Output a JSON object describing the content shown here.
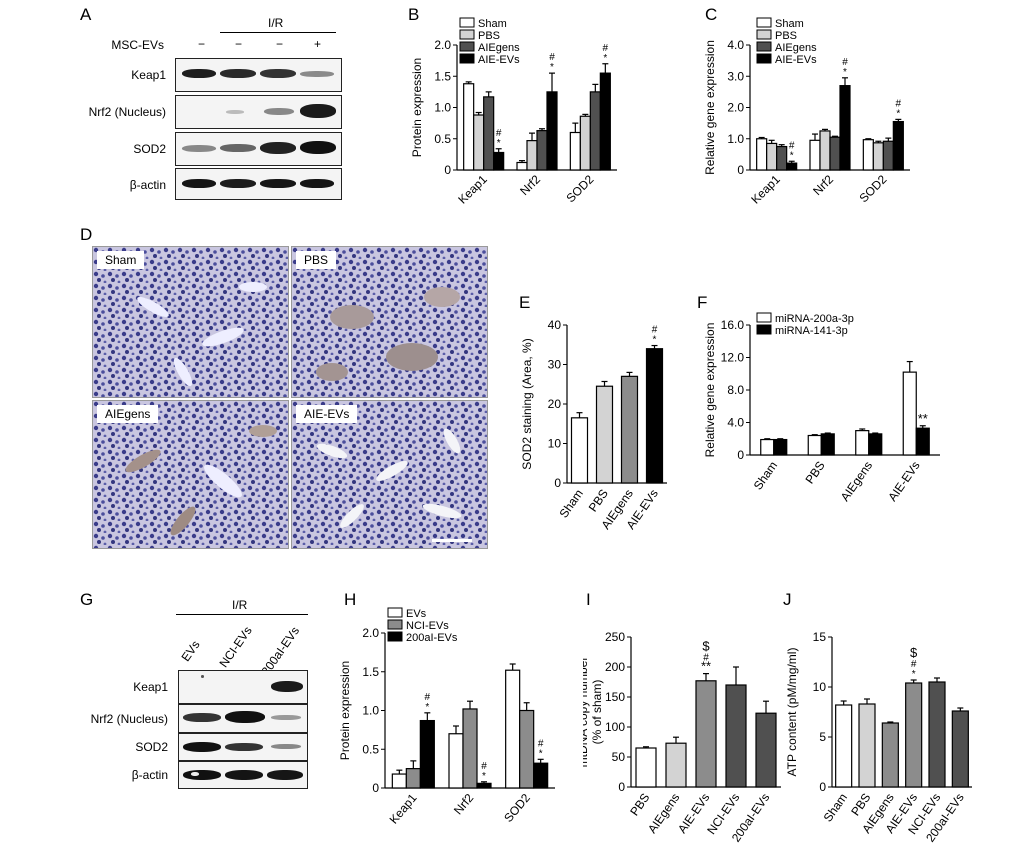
{
  "panels": {
    "A": "A",
    "B": "B",
    "C": "C",
    "D": "D",
    "E": "E",
    "F": "F",
    "G": "G",
    "H": "H",
    "I": "I",
    "J": "J"
  },
  "blotA": {
    "ir_label": "I/R",
    "treatment_label": "MSC-EVs",
    "treatment_signs": [
      "−",
      "−",
      "−",
      "+"
    ],
    "rows": [
      "Keap1",
      "Nrf2 (Nucleus)",
      "SOD2",
      "β-actin"
    ]
  },
  "blotG": {
    "ir_label": "I/R",
    "lanes": [
      "EVs",
      "NCI-EVs",
      "200aI-EVs"
    ],
    "rows": [
      "Keap1",
      "Nrf2 (Nucleus)",
      "SOD2",
      "β-actin"
    ]
  },
  "micro": {
    "panels": [
      "Sham",
      "PBS",
      "AIEgens",
      "AIE-EVs"
    ]
  },
  "colors": {
    "white": "#ffffff",
    "light": "#d3d3d3",
    "mid": "#8c8c8c",
    "dark": "#505050",
    "black": "#000000"
  },
  "chart_data": [
    {
      "id": "B",
      "type": "bar",
      "ylabel": "Protein expression",
      "categories": [
        "Keap1",
        "Nrf2",
        "SOD2"
      ],
      "ylim": [
        0,
        2.0
      ],
      "yticks": [
        "0",
        "0.5",
        "1.0",
        "1.5",
        "2.0"
      ],
      "series": [
        {
          "name": "Sham",
          "color": "white",
          "values": [
            1.38,
            0.12,
            0.6
          ],
          "errors": [
            0.03,
            0.03,
            0.15
          ]
        },
        {
          "name": "PBS",
          "color": "light",
          "values": [
            0.88,
            0.47,
            0.86
          ],
          "errors": [
            0.04,
            0.12,
            0.03
          ]
        },
        {
          "name": "AIEgens",
          "color": "dark",
          "values": [
            1.17,
            0.63,
            1.25
          ],
          "errors": [
            0.08,
            0.03,
            0.12
          ]
        },
        {
          "name": "AIE-EVs",
          "color": "black",
          "values": [
            0.28,
            1.25,
            1.55
          ],
          "errors": [
            0.06,
            0.3,
            0.15
          ]
        }
      ],
      "annotations": [
        [
          "#",
          "*"
        ],
        [
          "#",
          "*"
        ],
        [
          "#",
          "*"
        ]
      ],
      "annotation_series": 3
    },
    {
      "id": "C",
      "type": "bar",
      "ylabel": "Relative gene expression",
      "categories": [
        "Keap1",
        "Nrf2",
        "SOD2"
      ],
      "ylim": [
        0,
        4.0
      ],
      "yticks": [
        "0",
        "1.0",
        "2.0",
        "3.0",
        "4.0"
      ],
      "series": [
        {
          "name": "Sham",
          "color": "white",
          "values": [
            1.0,
            0.95,
            0.97
          ],
          "errors": [
            0.04,
            0.2,
            0.03
          ]
        },
        {
          "name": "PBS",
          "color": "light",
          "values": [
            0.85,
            1.25,
            0.87
          ],
          "errors": [
            0.1,
            0.05,
            0.05
          ]
        },
        {
          "name": "AIEgens",
          "color": "dark",
          "values": [
            0.75,
            1.05,
            0.92
          ],
          "errors": [
            0.06,
            0.03,
            0.1
          ]
        },
        {
          "name": "AIE-EVs",
          "color": "black",
          "values": [
            0.22,
            2.7,
            1.55
          ],
          "errors": [
            0.06,
            0.25,
            0.07
          ]
        }
      ],
      "annotations": [
        [
          "#",
          "*"
        ],
        [
          "#",
          "*"
        ],
        [
          "#",
          "*"
        ]
      ],
      "annotation_series": 3
    },
    {
      "id": "E",
      "type": "bar",
      "ylabel": "SOD2 staining (Area, %)",
      "categories": [
        "Sham",
        "PBS",
        "AIEgens",
        "AIE-EVs"
      ],
      "ylim": [
        0,
        40
      ],
      "yticks": [
        "0",
        "10",
        "20",
        "30",
        "40"
      ],
      "colors": [
        "white",
        "light",
        "mid",
        "black"
      ],
      "values": [
        16.5,
        24.5,
        27,
        34
      ],
      "errors": [
        1.3,
        1.2,
        1.0,
        0.8
      ],
      "annotations": [
        [],
        [],
        [],
        [
          "#",
          "*"
        ]
      ]
    },
    {
      "id": "F",
      "type": "bar",
      "ylabel": "Relative gene expression",
      "categories": [
        "Sham",
        "PBS",
        "AIEgens",
        "AIE-EVs"
      ],
      "ylim": [
        0,
        16
      ],
      "yticks": [
        "0",
        "4.0",
        "8.0",
        "12.0",
        "16.0"
      ],
      "series": [
        {
          "name": "miRNA-200a-3p",
          "color": "white",
          "values": [
            1.9,
            2.4,
            3.0,
            10.2
          ],
          "errors": [
            0.1,
            0.1,
            0.2,
            1.3
          ]
        },
        {
          "name": "miRNA-141-3p",
          "color": "black",
          "values": [
            1.9,
            2.6,
            2.6,
            3.3
          ],
          "errors": [
            0.1,
            0.1,
            0.1,
            0.3
          ]
        }
      ],
      "annotations": [
        [],
        [],
        [],
        [
          "**"
        ]
      ],
      "annotation_series": 1
    },
    {
      "id": "H",
      "type": "bar",
      "ylabel": "Protein expression",
      "categories": [
        "Keap1",
        "Nrf2",
        "SOD2"
      ],
      "ylim": [
        0,
        2.0
      ],
      "yticks": [
        "0",
        "0.5",
        "1.0",
        "1.5",
        "2.0"
      ],
      "series": [
        {
          "name": "EVs",
          "color": "white",
          "values": [
            0.18,
            0.7,
            1.52
          ],
          "errors": [
            0.05,
            0.1,
            0.08
          ]
        },
        {
          "name": "NCI-EVs",
          "color": "mid",
          "values": [
            0.25,
            1.02,
            1.0
          ],
          "errors": [
            0.1,
            0.1,
            0.1
          ]
        },
        {
          "name": "200aI-EVs",
          "color": "black",
          "values": [
            0.87,
            0.06,
            0.32
          ],
          "errors": [
            0.1,
            0.02,
            0.05
          ]
        }
      ],
      "annotations": [
        [
          "#",
          "*"
        ],
        [
          "#",
          "*"
        ],
        [
          "#",
          "*"
        ]
      ],
      "annotation_series": 2
    },
    {
      "id": "I",
      "type": "bar",
      "ylabel": "mtDNA copy number",
      "ylabel2": "(% of sham)",
      "categories": [
        "PBS",
        "AIEgens",
        "AIE-EVs",
        "NCI-EVs",
        "200aI-EVs"
      ],
      "ylim": [
        0,
        250
      ],
      "yticks": [
        "0",
        "50",
        "100",
        "150",
        "200",
        "250"
      ],
      "colors": [
        "white",
        "light",
        "mid",
        "dark",
        "dark"
      ],
      "values": [
        65,
        73,
        177,
        170,
        123
      ],
      "errors": [
        2,
        10,
        12,
        30,
        20
      ],
      "annotations": [
        [],
        [],
        [
          "$",
          "#",
          "**"
        ],
        [],
        []
      ]
    },
    {
      "id": "J",
      "type": "bar",
      "ylabel": "ATP content (pM/mg/ml)",
      "categories": [
        "Sham",
        "PBS",
        "AIEgens",
        "AIE-EVs",
        "NCI-EVs",
        "200aI-EVs"
      ],
      "ylim": [
        0,
        15
      ],
      "yticks": [
        "0",
        "5",
        "10",
        "15"
      ],
      "colors": [
        "white",
        "light",
        "mid",
        "mid",
        "dark",
        "dark"
      ],
      "values": [
        8.2,
        8.3,
        6.4,
        10.4,
        10.5,
        7.6
      ],
      "errors": [
        0.4,
        0.5,
        0.1,
        0.3,
        0.4,
        0.3
      ],
      "annotations": [
        [],
        [],
        [],
        [
          "$",
          "#",
          "*"
        ],
        [],
        []
      ]
    }
  ]
}
